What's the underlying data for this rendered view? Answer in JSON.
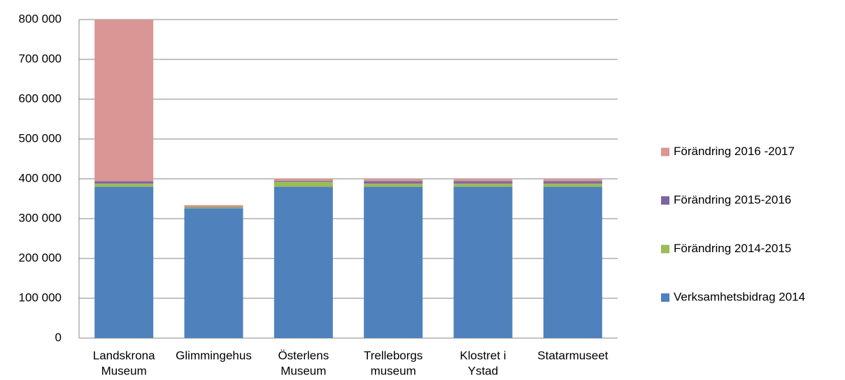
{
  "chart_data": {
    "type": "stacked_bar",
    "categories": [
      [
        "Landskrona",
        "Museum"
      ],
      [
        "Glimmingehus"
      ],
      [
        "Österlens",
        "Museum"
      ],
      [
        "Trelleborgs",
        "museum"
      ],
      [
        "Klostret i",
        "Ystad"
      ],
      [
        "Statarmuseet"
      ]
    ],
    "series": [
      {
        "name": "Verksamhetsbidrag 2014",
        "color": "#4f81bd",
        "values": [
          380000,
          326000,
          380000,
          380000,
          380000,
          380000
        ]
      },
      {
        "name": "Förändring 2014-2015",
        "color": "#9bbb59",
        "values": [
          8000,
          3000,
          13000,
          8000,
          8000,
          8000
        ]
      },
      {
        "name": "Förändring 2015-2016",
        "color": "#8064a2",
        "values": [
          6000,
          1000,
          2000,
          6000,
          6000,
          6000
        ]
      },
      {
        "name": "Förändring 2016 -2017",
        "color": "#d99694",
        "values": [
          406000,
          4000,
          5000,
          6000,
          6000,
          6000
        ]
      }
    ],
    "ylim": [
      0,
      800000
    ],
    "yticks": [
      0,
      {
        "value": 100000,
        "label": "100 000"
      },
      {
        "value": 200000,
        "label": "200 000"
      },
      {
        "value": 300000,
        "label": "300 000"
      },
      {
        "value": 400000,
        "label": "400 000"
      },
      {
        "value": 500000,
        "label": "500 000"
      },
      {
        "value": 600000,
        "label": "600 000"
      },
      {
        "value": 700000,
        "label": "700 000"
      },
      {
        "value": 800000,
        "label": "800 000"
      }
    ],
    "grid": true,
    "legend": "right"
  }
}
